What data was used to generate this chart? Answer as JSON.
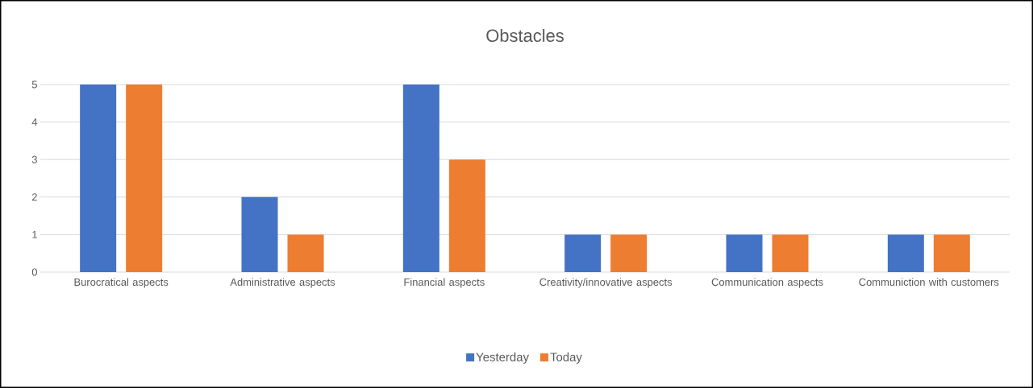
{
  "chart_data": {
    "type": "bar",
    "title": "Obstacles",
    "categories": [
      "Burocratical aspects",
      "Administrative aspects",
      "Financial aspects",
      "Creativity/innovative aspects",
      "Communication aspects",
      "Communiction with customers"
    ],
    "series": [
      {
        "name": "Yesterday",
        "color": "#4472c4",
        "values": [
          5,
          2,
          5,
          1,
          1,
          1
        ]
      },
      {
        "name": "Today",
        "color": "#ed7d31",
        "values": [
          5,
          1,
          3,
          1,
          1,
          1
        ]
      }
    ],
    "ylim": [
      0,
      5
    ],
    "yticks": [
      0,
      1,
      2,
      3,
      4,
      5
    ],
    "grid": "y",
    "legend": "bottom"
  }
}
